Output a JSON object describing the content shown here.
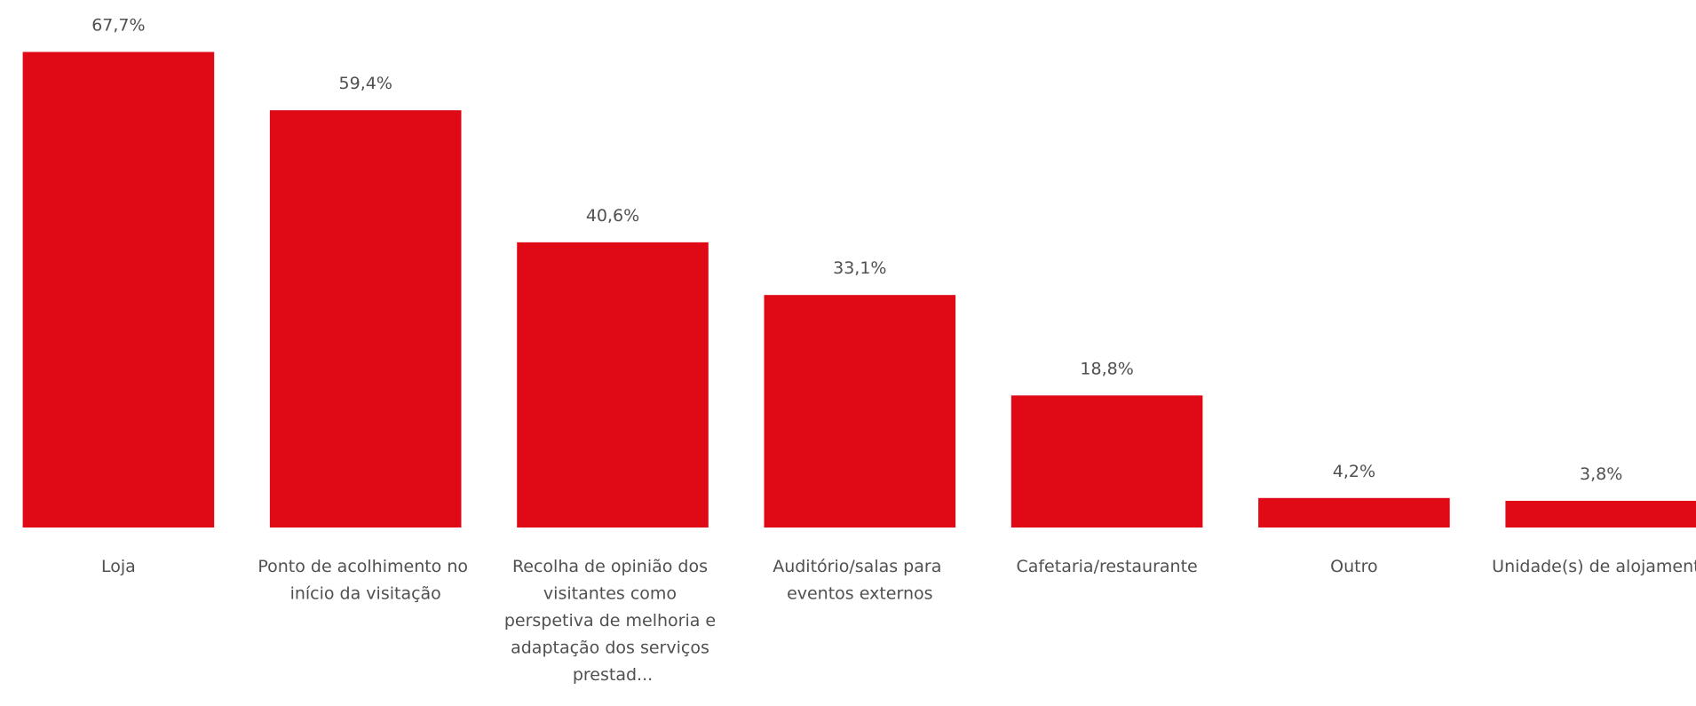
{
  "chart_data": {
    "type": "bar",
    "categories": [
      "Loja",
      "Ponto de acolhimento no início da visitação",
      "Recolha de opinião dos visitantes como perspetiva de melhoria e adaptação dos serviços prestad...",
      "Auditório/salas para eventos externos",
      "Cafetaria/restaurante",
      "Outro",
      "Unidade(s) de alojamento"
    ],
    "values": [
      67.7,
      59.4,
      40.6,
      33.1,
      18.8,
      4.2,
      3.8
    ],
    "value_labels": [
      "67,7%",
      "59,4%",
      "40,6%",
      "33,1%",
      "18,8%",
      "4,2%",
      "3,8%"
    ],
    "color": "#e00a16"
  }
}
